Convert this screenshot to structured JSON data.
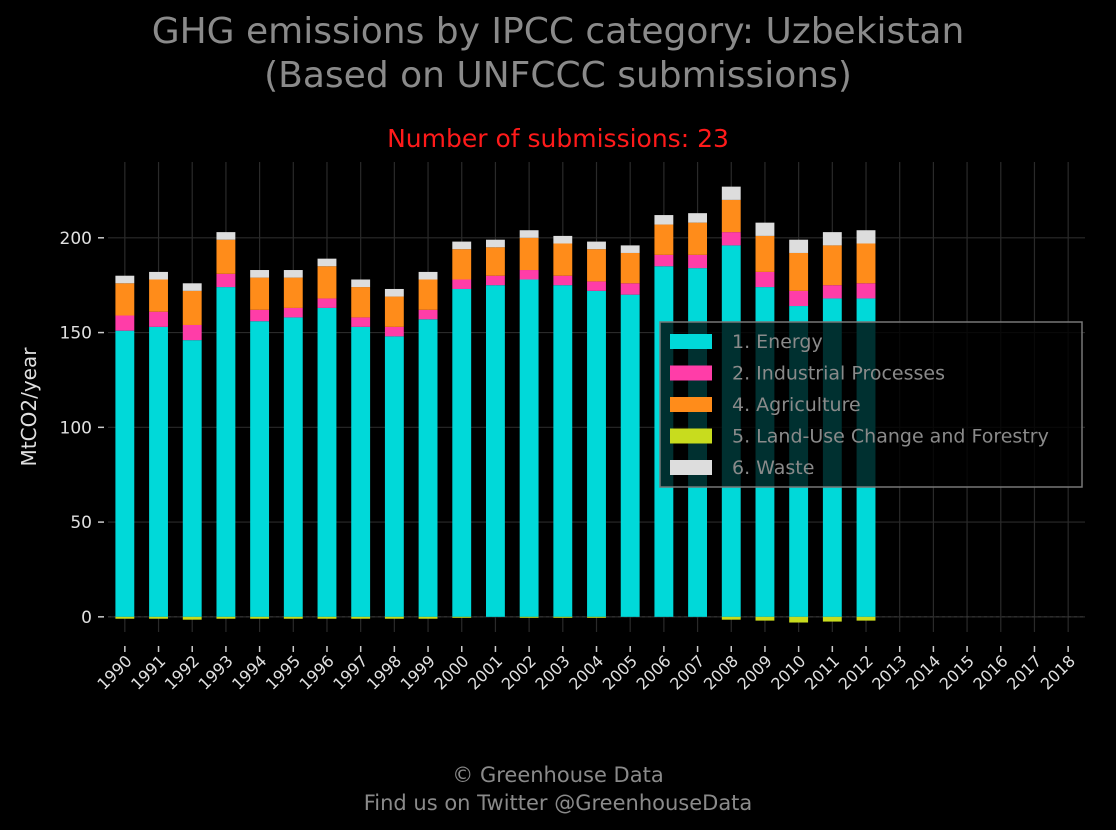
{
  "chart_data": {
    "type": "bar",
    "stacked": true,
    "title": "GHG emissions by IPCC category: Uzbekistan\n(Based on UNFCCC submissions)",
    "title_lines": [
      "GHG emissions by IPCC category: Uzbekistan",
      "(Based on UNFCCC submissions)"
    ],
    "subtitle": "Number of submissions: 23",
    "ylabel": "MtCO2/year",
    "xlabel": "",
    "ylim": [
      -8,
      240
    ],
    "yticks": [
      0,
      50,
      100,
      150,
      200
    ],
    "grid": true,
    "legend_position": "center-right",
    "categories": [
      "1990",
      "1991",
      "1992",
      "1993",
      "1994",
      "1995",
      "1996",
      "1997",
      "1998",
      "1999",
      "2000",
      "2001",
      "2002",
      "2003",
      "2004",
      "2005",
      "2006",
      "2007",
      "2008",
      "2009",
      "2010",
      "2011",
      "2012",
      "2013",
      "2014",
      "2015",
      "2016",
      "2017",
      "2018"
    ],
    "series": [
      {
        "name": "1. Energy",
        "color": "#00d9d9",
        "values": [
          151,
          153,
          146,
          174,
          156,
          158,
          163,
          153,
          148,
          157,
          173,
          175,
          178,
          175,
          172,
          170,
          185,
          184,
          196,
          174,
          164,
          168,
          168,
          null,
          null,
          null,
          null,
          null,
          null
        ]
      },
      {
        "name": "2. Industrial Processes",
        "color": "#ff3da8",
        "values": [
          8,
          8,
          8,
          7,
          6,
          5,
          5,
          5,
          5,
          5,
          5,
          5,
          5,
          5,
          5,
          6,
          6,
          7,
          7,
          8,
          8,
          7,
          8,
          null,
          null,
          null,
          null,
          null,
          null
        ]
      },
      {
        "name": "4. Agriculture",
        "color": "#ff8c1a",
        "values": [
          17,
          17,
          18,
          18,
          17,
          16,
          17,
          16,
          16,
          16,
          16,
          15,
          17,
          17,
          17,
          16,
          16,
          17,
          17,
          19,
          20,
          21,
          21,
          null,
          null,
          null,
          null,
          null,
          null
        ]
      },
      {
        "name": "5. Land-Use Change and Forestry",
        "color": "#c8dc1e",
        "values": [
          -1,
          -1,
          -1.5,
          -1,
          -1,
          -1,
          -1,
          -1,
          -1,
          -1,
          -0.5,
          0,
          -0.5,
          -0.5,
          -0.5,
          0,
          0,
          0,
          -1.5,
          -2,
          -3,
          -2.5,
          -2,
          null,
          null,
          null,
          null,
          null,
          null
        ]
      },
      {
        "name": "6. Waste",
        "color": "#dddddd",
        "values": [
          4,
          4,
          4,
          4,
          4,
          4,
          4,
          4,
          4,
          4,
          4,
          4,
          4,
          4,
          4,
          4,
          5,
          5,
          7,
          7,
          7,
          7,
          7,
          null,
          null,
          null,
          null,
          null,
          null
        ]
      }
    ]
  },
  "footer": {
    "line1": "© Greenhouse Data",
    "line2": "Find us on Twitter @GreenhouseData"
  }
}
